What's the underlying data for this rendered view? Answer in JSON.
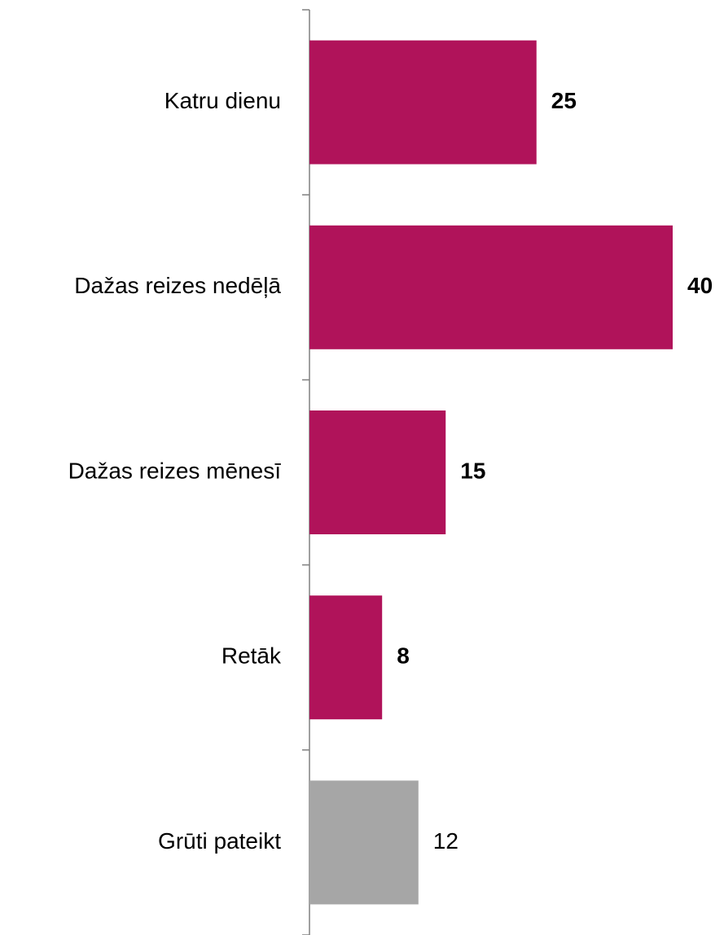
{
  "chart_data": {
    "type": "hbar",
    "categories": [
      "Katru dienu",
      "Dažas reizes nedēļā",
      "Dažas reizes mēnesī",
      "Retāk",
      "Grūti pateikt"
    ],
    "values": [
      25,
      40,
      15,
      8,
      12
    ],
    "colors": [
      "#b0135a",
      "#b0135a",
      "#b0135a",
      "#b0135a",
      "#a6a6a6"
    ],
    "value_labels_bold": [
      true,
      true,
      true,
      true,
      false
    ],
    "xlim": [
      0,
      40
    ]
  }
}
